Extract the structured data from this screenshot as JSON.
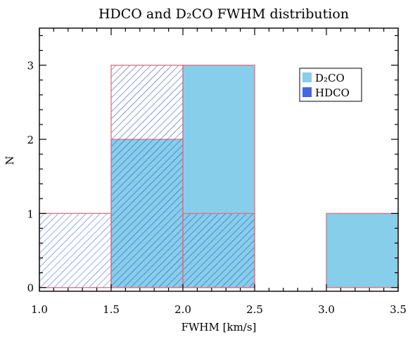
{
  "chart_data": {
    "type": "bar",
    "title": "HDCO and D₂CO FWHM distribution",
    "xlabel": "FWHM [km/s]",
    "ylabel": "N",
    "xlim": [
      1.0,
      3.5
    ],
    "ylim": [
      -0.05,
      3.5
    ],
    "x_ticks": [
      "1.0",
      "1.5",
      "2.0",
      "2.5",
      "3.0",
      "3.5"
    ],
    "y_ticks": [
      "0",
      "1",
      "2",
      "3"
    ],
    "bin_edges": [
      1.0,
      1.5,
      2.0,
      2.5,
      3.0,
      3.5
    ],
    "legend_position": "top-right",
    "series": [
      {
        "name": "D₂CO",
        "color": "#87ceeb",
        "values": [
          0,
          2,
          3,
          0,
          1
        ]
      },
      {
        "name": "HDCO",
        "color": "#4169e1",
        "values": [
          1,
          3,
          1,
          0,
          0
        ]
      }
    ],
    "edge_color": "#e07080"
  }
}
